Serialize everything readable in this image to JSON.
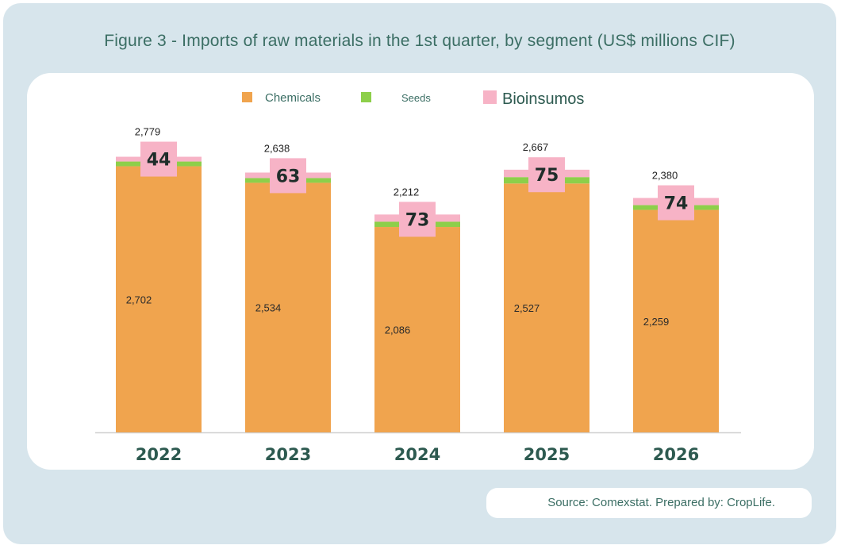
{
  "title": "Figure 3 - Imports of raw materials in the 1st quarter, by segment (US$ millions CIF)",
  "source": "Source: Comexstat. Prepared by: CropLife.",
  "colors": {
    "chemicals": "#f0a44e",
    "seeds": "#8dcf4a",
    "bioinsumos": "#f7b3c6",
    "title_text": "#3b6e64",
    "frame_bg": "#d7e5ec"
  },
  "chart_data": {
    "type": "bar",
    "stacked": true,
    "title": "Figure 3 - Imports of raw materials in the 1st quarter, by segment (US$ millions CIF)",
    "categories": [
      "2022",
      "2023",
      "2024",
      "2025",
      "2026"
    ],
    "series": [
      {
        "name": "Chemicals",
        "values": [
          2702,
          2534,
          2086,
          2527,
          2259
        ],
        "labels": [
          "2,702",
          "2,534",
          "2,086",
          "2,527",
          "2,259"
        ]
      },
      {
        "name": "Seeds",
        "values": [
          33,
          41,
          53,
          65,
          47
        ]
      },
      {
        "name": "Bioinsumos",
        "values": [
          44,
          63,
          73,
          75,
          74
        ],
        "labels": [
          "44",
          "63",
          "73",
          "75",
          "74"
        ]
      }
    ],
    "totals": [
      2779,
      2638,
      2212,
      2667,
      2380
    ],
    "total_labels": [
      "2,779",
      "2,638",
      "2,212",
      "2,667",
      "2,380"
    ],
    "legend": [
      "Chemicals",
      "Seeds",
      "Bioinsumos"
    ],
    "legend_position": "top",
    "ylim": [
      0,
      2779
    ],
    "grid": false
  }
}
